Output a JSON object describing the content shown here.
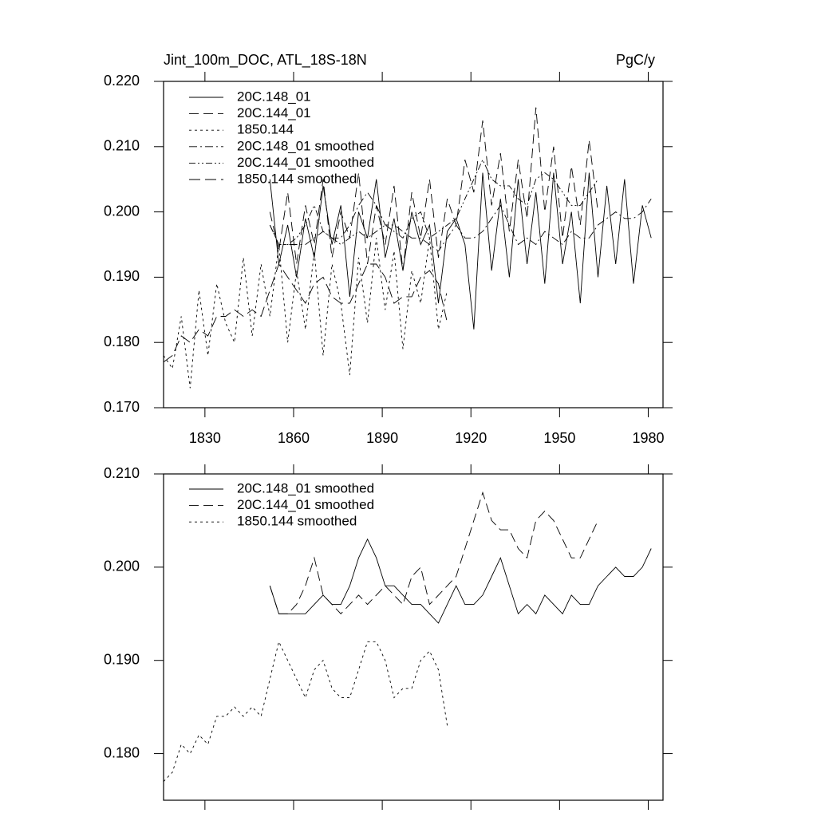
{
  "chart_data": [
    {
      "type": "line",
      "title": "Jint_100m_DOC, ATL_18S-18N",
      "units": "PgC/y",
      "x": [
        1816,
        1819,
        1822,
        1825,
        1828,
        1831,
        1834,
        1837,
        1840,
        1843,
        1846,
        1849,
        1852,
        1855,
        1858,
        1861,
        1864,
        1867,
        1870,
        1873,
        1876,
        1879,
        1882,
        1885,
        1888,
        1891,
        1894,
        1897,
        1900,
        1903,
        1906,
        1909,
        1912,
        1915,
        1918,
        1921,
        1924,
        1927,
        1930,
        1933,
        1936,
        1939,
        1942,
        1945,
        1948,
        1951,
        1954,
        1957,
        1960,
        1963,
        1966,
        1969,
        1972,
        1975,
        1978,
        1981
      ],
      "xlim": [
        1816,
        1985
      ],
      "xticks": [
        1830,
        1860,
        1890,
        1920,
        1950,
        1980
      ],
      "ylim": [
        0.17,
        0.22
      ],
      "yticks": [
        {
          "value": 0.17,
          "label": "0.170"
        },
        {
          "value": 0.18,
          "label": "0.180"
        },
        {
          "value": 0.19,
          "label": "0.190"
        },
        {
          "value": 0.2,
          "label": "0.200"
        },
        {
          "value": 0.21,
          "label": "0.210"
        },
        {
          "value": 0.22,
          "label": "0.220"
        }
      ],
      "xtick_labels": true,
      "series": [
        {
          "name": "20C.148_01",
          "color": "#000000",
          "dash": "",
          "values": [
            null,
            null,
            null,
            null,
            null,
            null,
            null,
            null,
            null,
            null,
            null,
            null,
            0.205,
            0.192,
            0.198,
            0.19,
            0.199,
            0.193,
            0.204,
            0.195,
            0.201,
            0.187,
            0.2,
            0.196,
            0.205,
            0.193,
            0.199,
            0.191,
            0.2,
            0.195,
            0.198,
            0.186,
            0.197,
            0.199,
            0.195,
            0.182,
            0.206,
            0.191,
            0.202,
            0.19,
            0.205,
            0.192,
            0.203,
            0.189,
            0.206,
            0.192,
            0.2,
            0.186,
            0.206,
            0.19,
            0.204,
            0.192,
            0.205,
            0.189,
            0.201,
            0.196
          ]
        },
        {
          "name": "20C.144_01",
          "color": "#000000",
          "dash": "12 6",
          "values": [
            null,
            null,
            null,
            null,
            null,
            null,
            null,
            null,
            null,
            null,
            null,
            null,
            0.2,
            0.194,
            0.203,
            0.192,
            0.201,
            0.195,
            0.205,
            0.193,
            0.2,
            0.196,
            0.206,
            0.192,
            0.201,
            0.195,
            0.204,
            0.191,
            0.203,
            0.196,
            0.205,
            0.193,
            0.202,
            0.198,
            0.208,
            0.203,
            0.214,
            0.201,
            0.209,
            0.197,
            0.208,
            0.199,
            0.216,
            0.2,
            0.21,
            0.196,
            0.207,
            0.198,
            0.211,
            0.2,
            null,
            null,
            null,
            null,
            null,
            null
          ]
        },
        {
          "name": "1850.144",
          "color": "#000000",
          "dash": "3 4",
          "values": [
            0.178,
            0.176,
            0.184,
            0.173,
            0.188,
            0.178,
            0.189,
            0.183,
            0.18,
            0.193,
            0.181,
            0.192,
            0.184,
            0.195,
            0.18,
            0.191,
            0.182,
            0.194,
            0.178,
            0.192,
            0.186,
            0.175,
            0.193,
            0.183,
            0.196,
            0.185,
            0.194,
            0.179,
            0.191,
            0.186,
            0.196,
            0.182,
            0.188,
            null,
            null,
            null,
            null,
            null,
            null,
            null,
            null,
            null,
            null,
            null,
            null,
            null,
            null,
            null,
            null,
            null,
            null,
            null,
            null,
            null,
            null,
            null
          ]
        },
        {
          "name": "20C.148_01 smoothed",
          "color": "#000000",
          "dash": "10 4 2 4",
          "values": [
            null,
            null,
            null,
            null,
            null,
            null,
            null,
            null,
            null,
            null,
            null,
            null,
            0.198,
            0.195,
            0.195,
            0.195,
            0.195,
            0.196,
            0.197,
            0.196,
            0.196,
            0.198,
            0.201,
            0.203,
            0.201,
            0.198,
            0.198,
            0.197,
            0.196,
            0.196,
            0.195,
            0.194,
            0.196,
            0.198,
            0.196,
            0.196,
            0.197,
            0.199,
            0.201,
            0.198,
            0.195,
            0.196,
            0.195,
            0.197,
            0.196,
            0.195,
            0.197,
            0.196,
            0.196,
            0.198,
            0.199,
            0.2,
            0.199,
            0.199,
            0.2,
            0.202
          ]
        },
        {
          "name": "20C.144_01 smoothed",
          "color": "#000000",
          "dash": "8 3 2 3 2 3",
          "values": [
            null,
            null,
            null,
            null,
            null,
            null,
            null,
            null,
            null,
            null,
            null,
            null,
            0.198,
            0.195,
            0.195,
            0.196,
            0.198,
            0.201,
            0.197,
            0.196,
            0.195,
            0.196,
            0.197,
            0.196,
            0.197,
            0.198,
            0.197,
            0.196,
            0.199,
            0.2,
            0.196,
            0.197,
            0.198,
            0.199,
            0.202,
            0.205,
            0.208,
            0.205,
            0.204,
            0.204,
            0.202,
            0.201,
            0.205,
            0.206,
            0.205,
            0.203,
            0.201,
            0.201,
            0.203,
            0.205,
            null,
            null,
            null,
            null,
            null,
            null
          ]
        },
        {
          "name": "1850.144 smoothed",
          "color": "#000000",
          "dash": "14 6",
          "values": [
            0.177,
            0.178,
            0.181,
            0.18,
            0.182,
            0.181,
            0.184,
            0.184,
            0.185,
            0.184,
            0.185,
            0.184,
            0.188,
            0.192,
            0.19,
            0.188,
            0.186,
            0.189,
            0.19,
            0.187,
            0.186,
            0.186,
            0.189,
            0.192,
            0.192,
            0.19,
            0.186,
            0.187,
            0.187,
            0.19,
            0.191,
            0.189,
            0.183,
            null,
            null,
            null,
            null,
            null,
            null,
            null,
            null,
            null,
            null,
            null,
            null,
            null,
            null,
            null,
            null,
            null,
            null,
            null,
            null,
            null,
            null,
            null
          ]
        }
      ]
    },
    {
      "type": "line",
      "x": [
        1816,
        1819,
        1822,
        1825,
        1828,
        1831,
        1834,
        1837,
        1840,
        1843,
        1846,
        1849,
        1852,
        1855,
        1858,
        1861,
        1864,
        1867,
        1870,
        1873,
        1876,
        1879,
        1882,
        1885,
        1888,
        1891,
        1894,
        1897,
        1900,
        1903,
        1906,
        1909,
        1912,
        1915,
        1918,
        1921,
        1924,
        1927,
        1930,
        1933,
        1936,
        1939,
        1942,
        1945,
        1948,
        1951,
        1954,
        1957,
        1960,
        1963,
        1966,
        1969,
        1972,
        1975,
        1978,
        1981
      ],
      "xlim": [
        1816,
        1985
      ],
      "xticks": [
        1830,
        1860,
        1890,
        1920,
        1950,
        1980
      ],
      "ylim": [
        0.175,
        0.21
      ],
      "yticks": [
        {
          "value": 0.18,
          "label": "0.180"
        },
        {
          "value": 0.19,
          "label": "0.190"
        },
        {
          "value": 0.2,
          "label": "0.200"
        },
        {
          "value": 0.21,
          "label": "0.210"
        }
      ],
      "xtick_labels": false,
      "series": [
        {
          "name": "20C.148_01 smoothed",
          "color": "#000000",
          "dash": "",
          "values": [
            null,
            null,
            null,
            null,
            null,
            null,
            null,
            null,
            null,
            null,
            null,
            null,
            0.198,
            0.195,
            0.195,
            0.195,
            0.195,
            0.196,
            0.197,
            0.196,
            0.196,
            0.198,
            0.201,
            0.203,
            0.201,
            0.198,
            0.198,
            0.197,
            0.196,
            0.196,
            0.195,
            0.194,
            0.196,
            0.198,
            0.196,
            0.196,
            0.197,
            0.199,
            0.201,
            0.198,
            0.195,
            0.196,
            0.195,
            0.197,
            0.196,
            0.195,
            0.197,
            0.196,
            0.196,
            0.198,
            0.199,
            0.2,
            0.199,
            0.199,
            0.2,
            0.202
          ]
        },
        {
          "name": "20C.144_01 smoothed",
          "color": "#000000",
          "dash": "12 6",
          "values": [
            null,
            null,
            null,
            null,
            null,
            null,
            null,
            null,
            null,
            null,
            null,
            null,
            0.198,
            0.195,
            0.195,
            0.196,
            0.198,
            0.201,
            0.197,
            0.196,
            0.195,
            0.196,
            0.197,
            0.196,
            0.197,
            0.198,
            0.197,
            0.196,
            0.199,
            0.2,
            0.196,
            0.197,
            0.198,
            0.199,
            0.202,
            0.205,
            0.208,
            0.205,
            0.204,
            0.204,
            0.202,
            0.201,
            0.205,
            0.206,
            0.205,
            0.203,
            0.201,
            0.201,
            0.203,
            0.205,
            null,
            null,
            null,
            null,
            null,
            null
          ]
        },
        {
          "name": "1850.144 smoothed",
          "color": "#000000",
          "dash": "3 4",
          "values": [
            0.177,
            0.178,
            0.181,
            0.18,
            0.182,
            0.181,
            0.184,
            0.184,
            0.185,
            0.184,
            0.185,
            0.184,
            0.188,
            0.192,
            0.19,
            0.188,
            0.186,
            0.189,
            0.19,
            0.187,
            0.186,
            0.186,
            0.189,
            0.192,
            0.192,
            0.19,
            0.186,
            0.187,
            0.187,
            0.19,
            0.191,
            0.189,
            0.183,
            null,
            null,
            null,
            null,
            null,
            null,
            null,
            null,
            null,
            null,
            null,
            null,
            null,
            null,
            null,
            null,
            null,
            null,
            null,
            null,
            null,
            null,
            null
          ]
        }
      ]
    }
  ]
}
